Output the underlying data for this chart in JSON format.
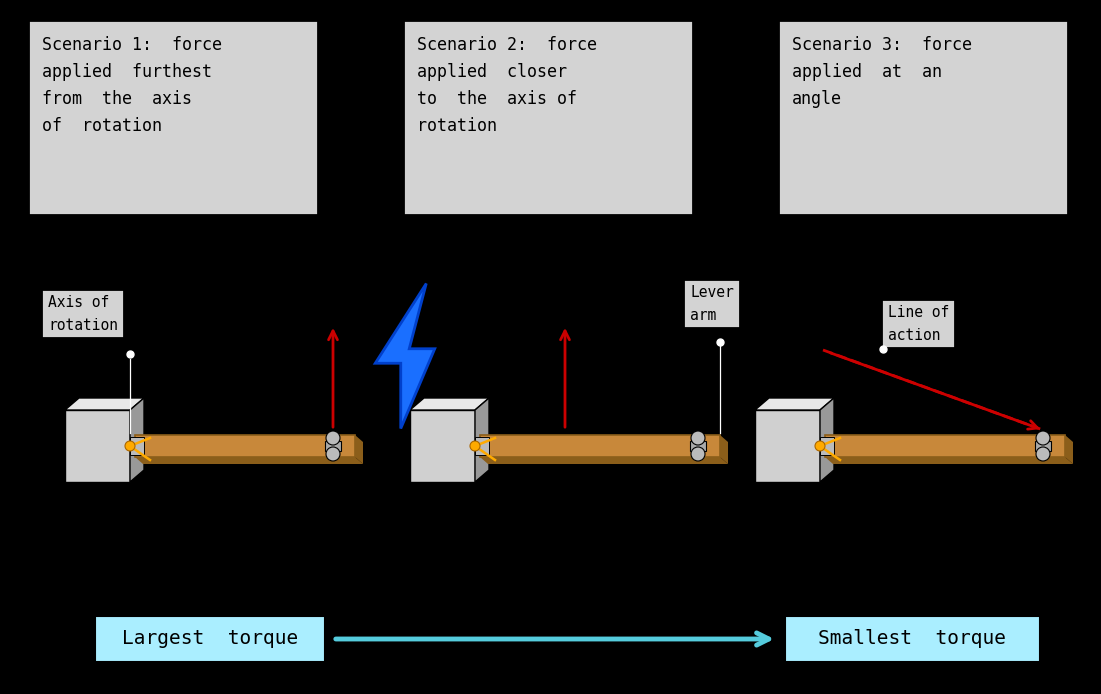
{
  "bg_color": "#000000",
  "scenario_box_color": "#d3d3d3",
  "scenario_box_edge": "#000000",
  "scenario_texts": [
    "Scenario 1:  force\napplied  furthest\nfrom  the  axis\nof  rotation",
    "Scenario 2:  force\napplied  closer\nto  the  axis of\nrotation",
    "Scenario 3:  force\napplied  at  an\nangle"
  ],
  "label_box_color": "#d3d3d3",
  "label_box_edge": "#000000",
  "axis_of_rotation_label": "Axis of\nrotation",
  "lever_arm_label": "Lever\narm",
  "line_of_action_label": "Line of\naction",
  "torque_left_label": "Largest  torque",
  "torque_right_label": "Smallest  torque",
  "torque_box_color": "#aaeeff",
  "door_color": "#c8883a",
  "door_dark": "#8B5E1A",
  "wall_color": "#d0d0d0",
  "wall_dark": "#999999",
  "wall_top": "#e8e8e8",
  "hinge_color": "#ffaa00",
  "force_color": "#cc0000",
  "lightning_blue": "#1a6fff",
  "lightning_dark": "#0040cc",
  "font_name": "monospace"
}
